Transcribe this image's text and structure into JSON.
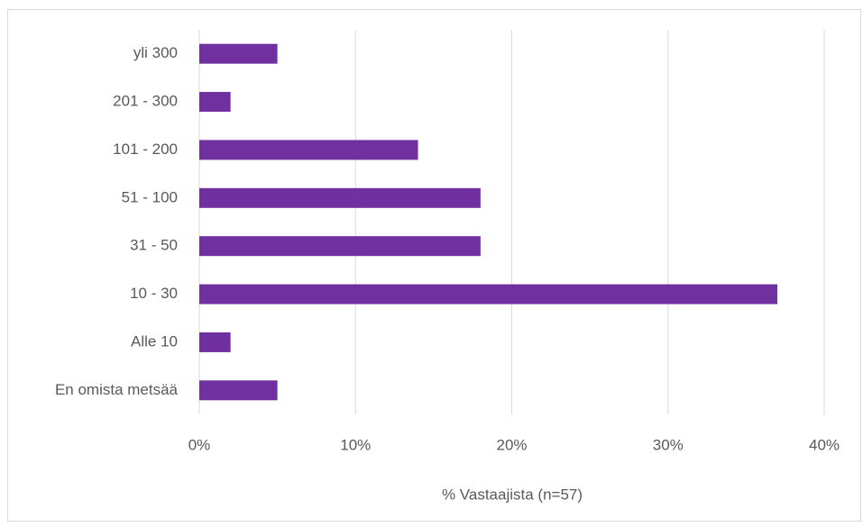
{
  "chart_data": {
    "type": "bar",
    "orientation": "horizontal",
    "categories": [
      "yli 300",
      "201 - 300",
      "101 - 200",
      "51 - 100",
      "31 - 50",
      "10 - 30",
      "Alle 10",
      "En omista metsää"
    ],
    "values": [
      5,
      2,
      14,
      18,
      18,
      37,
      2,
      5
    ],
    "color": "#7030a0",
    "xlabel": "% Vastaajista (n=57)",
    "xlim": [
      0,
      40
    ],
    "xticks": [
      {
        "value": 0,
        "label": "0%"
      },
      {
        "value": 10,
        "label": "10%"
      },
      {
        "value": 20,
        "label": "20%"
      },
      {
        "value": 30,
        "label": "30%"
      },
      {
        "value": 40,
        "label": "40%"
      }
    ],
    "grid": true
  }
}
